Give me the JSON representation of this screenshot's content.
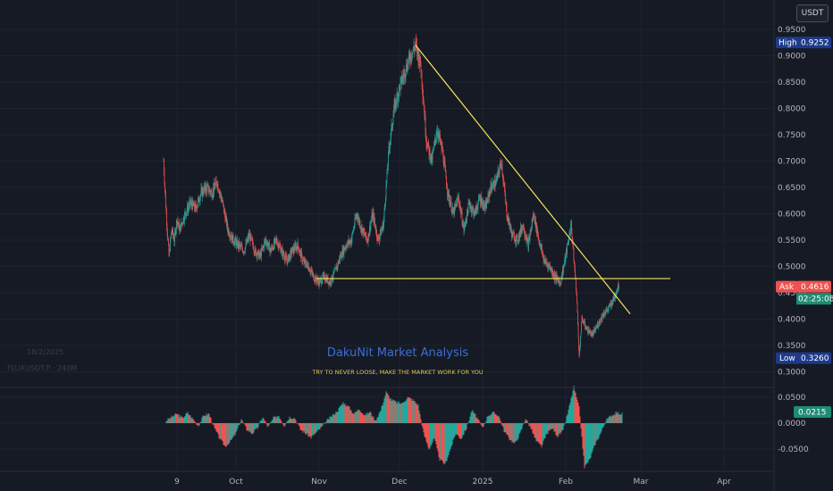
{
  "currency": "USDT",
  "symbol_line": "FLUXUSDT.P · 240M",
  "date_ghost": "18/2/2025",
  "watermark": {
    "title": "DakuNit Market Analysis",
    "subtitle": "TRY TO NEVER LOOSE, MAKE THE MARKET WORK FOR YOU"
  },
  "colors": {
    "background": "#161a25",
    "up": "#26a69a",
    "down": "#ef5350",
    "trendline": "#f5e35c",
    "high_label_bg": "#1e3a8a",
    "ask_label_bg": "#ef5350",
    "last_label_bg": "#1e8c73",
    "low_label_bg": "#1e3a8a"
  },
  "price_labels": {
    "high": {
      "name": "High",
      "value": "0.9252",
      "price": 0.9252
    },
    "ask": {
      "name": "Ask",
      "value": "0.4616",
      "price": 0.4616
    },
    "countdown": "02:25:08",
    "low": {
      "name": "Low",
      "value": "0.3260",
      "price": 0.326
    }
  },
  "osc_label": {
    "value": "0.0215",
    "level": 0.0215
  },
  "chart_data": [
    {
      "type": "candlestick",
      "y_axis": {
        "range": [
          0.3,
          0.97
        ],
        "ticks": [
          "0.9500",
          "0.9000",
          "0.8500",
          "0.8000",
          "0.7500",
          "0.7000",
          "0.6500",
          "0.6000",
          "0.5500",
          "0.5000",
          "0.4500",
          "0.4000",
          "0.3500",
          "0.3000"
        ],
        "tick_values": [
          0.95,
          0.9,
          0.85,
          0.8,
          0.75,
          0.7,
          0.65,
          0.6,
          0.55,
          0.5,
          0.45,
          0.4,
          0.35,
          0.3
        ]
      },
      "x_axis": {
        "labels": [
          "9",
          "Oct",
          "Nov",
          "Dec",
          "2025",
          "Feb",
          "Mar",
          "Apr"
        ],
        "label_days": [
          -22,
          0,
          31,
          61,
          92,
          123,
          151,
          182
        ]
      },
      "price_series_path": [
        [
          -27,
          0.7
        ],
        [
          -26,
          0.6
        ],
        [
          -25,
          0.52
        ],
        [
          -24,
          0.57
        ],
        [
          -23,
          0.55
        ],
        [
          -22,
          0.59
        ],
        [
          -21,
          0.57
        ],
        [
          -19,
          0.6
        ],
        [
          -17,
          0.62
        ],
        [
          -15,
          0.61
        ],
        [
          -13,
          0.64
        ],
        [
          -11,
          0.65
        ],
        [
          -9,
          0.64
        ],
        [
          -7,
          0.66
        ],
        [
          -5,
          0.62
        ],
        [
          -3,
          0.57
        ],
        [
          -1,
          0.55
        ],
        [
          1,
          0.54
        ],
        [
          3,
          0.53
        ],
        [
          5,
          0.56
        ],
        [
          7,
          0.53
        ],
        [
          9,
          0.52
        ],
        [
          11,
          0.55
        ],
        [
          13,
          0.53
        ],
        [
          15,
          0.55
        ],
        [
          17,
          0.53
        ],
        [
          19,
          0.51
        ],
        [
          21,
          0.53
        ],
        [
          23,
          0.54
        ],
        [
          25,
          0.51
        ],
        [
          27,
          0.5
        ],
        [
          29,
          0.48
        ],
        [
          31,
          0.47
        ],
        [
          33,
          0.48
        ],
        [
          35,
          0.47
        ],
        [
          37,
          0.49
        ],
        [
          39,
          0.52
        ],
        [
          41,
          0.54
        ],
        [
          43,
          0.55
        ],
        [
          45,
          0.6
        ],
        [
          47,
          0.57
        ],
        [
          49,
          0.55
        ],
        [
          51,
          0.6
        ],
        [
          53,
          0.55
        ],
        [
          55,
          0.58
        ],
        [
          57,
          0.72
        ],
        [
          59,
          0.8
        ],
        [
          61,
          0.84
        ],
        [
          63,
          0.87
        ],
        [
          65,
          0.9
        ],
        [
          67,
          0.92
        ],
        [
          69,
          0.88
        ],
        [
          71,
          0.74
        ],
        [
          73,
          0.7
        ],
        [
          75,
          0.76
        ],
        [
          77,
          0.72
        ],
        [
          79,
          0.64
        ],
        [
          81,
          0.6
        ],
        [
          83,
          0.63
        ],
        [
          85,
          0.57
        ],
        [
          87,
          0.62
        ],
        [
          89,
          0.6
        ],
        [
          91,
          0.63
        ],
        [
          93,
          0.61
        ],
        [
          95,
          0.65
        ],
        [
          97,
          0.66
        ],
        [
          99,
          0.7
        ],
        [
          101,
          0.6
        ],
        [
          103,
          0.56
        ],
        [
          105,
          0.55
        ],
        [
          107,
          0.58
        ],
        [
          109,
          0.54
        ],
        [
          111,
          0.6
        ],
        [
          113,
          0.55
        ],
        [
          115,
          0.51
        ],
        [
          117,
          0.5
        ],
        [
          119,
          0.48
        ],
        [
          121,
          0.47
        ],
        [
          123,
          0.52
        ],
        [
          125,
          0.58
        ],
        [
          127,
          0.45
        ],
        [
          128,
          0.33
        ],
        [
          129,
          0.4
        ],
        [
          131,
          0.38
        ],
        [
          133,
          0.37
        ],
        [
          135,
          0.39
        ],
        [
          137,
          0.41
        ],
        [
          139,
          0.42
        ],
        [
          141,
          0.44
        ],
        [
          143,
          0.47
        ]
      ],
      "trendlines": [
        {
          "name": "descending-trendline",
          "from": [
            67,
            0.92
          ],
          "to": [
            147,
            0.41
          ]
        },
        {
          "name": "support-line",
          "from": [
            30,
            0.477
          ],
          "to": [
            162,
            0.477
          ]
        }
      ]
    },
    {
      "type": "histogram",
      "y_axis": {
        "range": [
          -0.092,
          0.07
        ],
        "ticks": [
          "0.0500",
          "0.0000",
          "-0.0500"
        ],
        "tick_values": [
          0.05,
          0.0,
          -0.05
        ]
      },
      "series_path": [
        [
          -26,
          0.005
        ],
        [
          -24,
          0.012
        ],
        [
          -22,
          0.018
        ],
        [
          -20,
          0.01
        ],
        [
          -18,
          0.02
        ],
        [
          -16,
          0.008
        ],
        [
          -14,
          -0.005
        ],
        [
          -12,
          0.015
        ],
        [
          -10,
          0.018
        ],
        [
          -8,
          -0.01
        ],
        [
          -6,
          -0.03
        ],
        [
          -4,
          -0.045
        ],
        [
          -2,
          -0.035
        ],
        [
          0,
          -0.02
        ],
        [
          2,
          0.008
        ],
        [
          4,
          -0.012
        ],
        [
          6,
          -0.02
        ],
        [
          8,
          -0.01
        ],
        [
          10,
          0.012
        ],
        [
          12,
          -0.008
        ],
        [
          14,
          0.01
        ],
        [
          16,
          0.015
        ],
        [
          18,
          -0.005
        ],
        [
          20,
          0.012
        ],
        [
          22,
          0.01
        ],
        [
          24,
          -0.012
        ],
        [
          26,
          -0.02
        ],
        [
          28,
          -0.028
        ],
        [
          30,
          -0.018
        ],
        [
          32,
          -0.008
        ],
        [
          34,
          0.005
        ],
        [
          36,
          0.015
        ],
        [
          38,
          0.025
        ],
        [
          40,
          0.04
        ],
        [
          42,
          0.032
        ],
        [
          44,
          0.018
        ],
        [
          46,
          0.028
        ],
        [
          48,
          0.015
        ],
        [
          50,
          0.022
        ],
        [
          52,
          0.005
        ],
        [
          54,
          0.025
        ],
        [
          56,
          0.06
        ],
        [
          58,
          0.045
        ],
        [
          60,
          0.04
        ],
        [
          62,
          0.038
        ],
        [
          64,
          0.05
        ],
        [
          66,
          0.045
        ],
        [
          68,
          0.035
        ],
        [
          70,
          -0.02
        ],
        [
          72,
          -0.05
        ],
        [
          74,
          -0.03
        ],
        [
          76,
          -0.07
        ],
        [
          78,
          -0.08
        ],
        [
          80,
          -0.05
        ],
        [
          82,
          -0.02
        ],
        [
          84,
          -0.03
        ],
        [
          86,
          -0.01
        ],
        [
          88,
          0.025
        ],
        [
          90,
          0.01
        ],
        [
          92,
          -0.01
        ],
        [
          94,
          0.015
        ],
        [
          96,
          0.02
        ],
        [
          98,
          0.015
        ],
        [
          100,
          -0.015
        ],
        [
          102,
          -0.03
        ],
        [
          104,
          -0.04
        ],
        [
          106,
          -0.02
        ],
        [
          108,
          0.01
        ],
        [
          110,
          -0.01
        ],
        [
          112,
          -0.035
        ],
        [
          114,
          -0.045
        ],
        [
          116,
          -0.02
        ],
        [
          118,
          -0.01
        ],
        [
          120,
          -0.025
        ],
        [
          122,
          -0.015
        ],
        [
          124,
          0.025
        ],
        [
          126,
          0.07
        ],
        [
          128,
          0.03
        ],
        [
          130,
          -0.085
        ],
        [
          132,
          -0.07
        ],
        [
          134,
          -0.04
        ],
        [
          136,
          -0.02
        ],
        [
          138,
          0.005
        ],
        [
          140,
          0.015
        ],
        [
          142,
          0.02
        ],
        [
          144,
          0.018
        ]
      ]
    }
  ]
}
